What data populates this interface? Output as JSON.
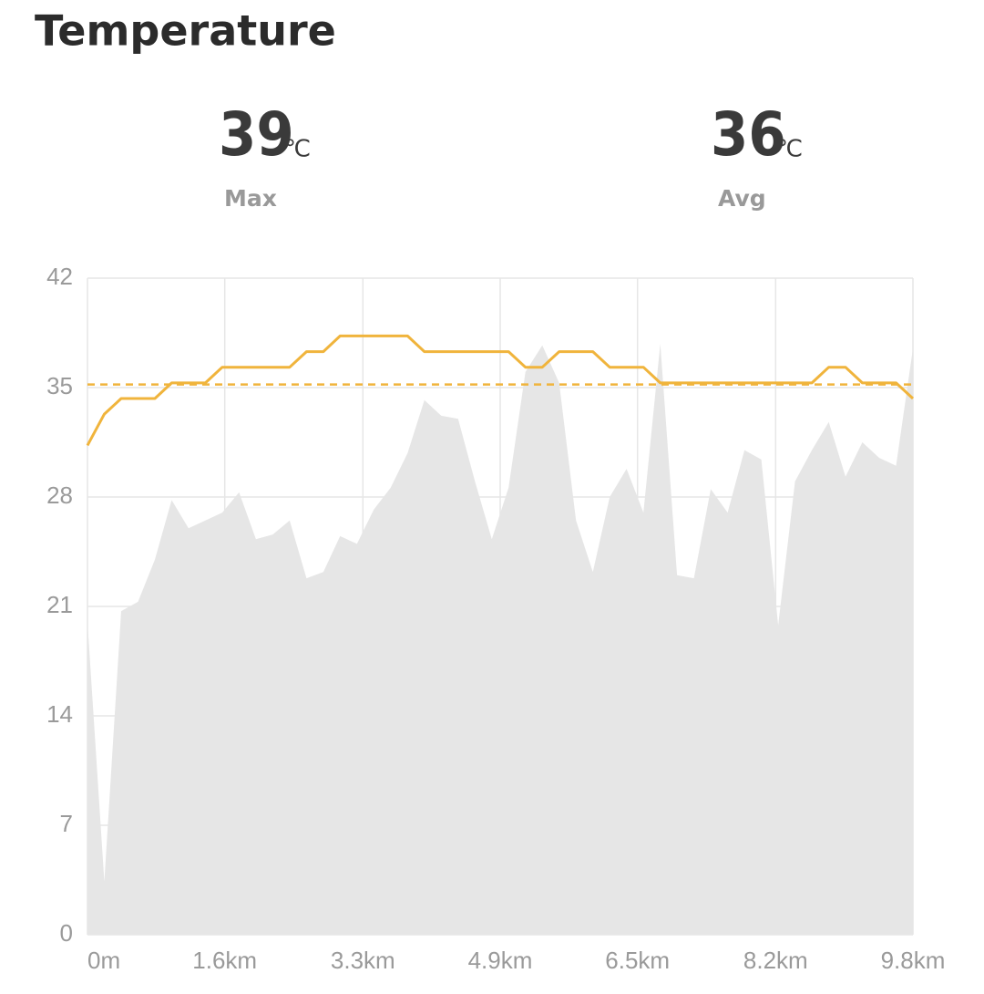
{
  "title": "Temperature",
  "stats": [
    {
      "value": 39,
      "unit": "℃",
      "label": "Max"
    },
    {
      "value": 36,
      "unit": "℃",
      "label": "Avg"
    }
  ],
  "chart_data": {
    "type": "line",
    "x": [
      0,
      0.2,
      0.4,
      0.6,
      0.8,
      1.0,
      1.2,
      1.4,
      1.6,
      1.8,
      2.0,
      2.2,
      2.4,
      2.6,
      2.8,
      3.0,
      3.2,
      3.4,
      3.6,
      3.8,
      4.0,
      4.2,
      4.4,
      4.6,
      4.8,
      5.0,
      5.2,
      5.4,
      5.6,
      5.8,
      6.0,
      6.2,
      6.4,
      6.6,
      6.8,
      7.0,
      7.2,
      7.4,
      7.6,
      7.8,
      8.0,
      8.2,
      8.4,
      8.6,
      8.8,
      9.0,
      9.2,
      9.4,
      9.6,
      9.8
    ],
    "series": [
      {
        "type": "area",
        "color": "#e6e6e6",
        "values": [
          20,
          3.4,
          20.7,
          21.3,
          24,
          27.8,
          26,
          26.5,
          27,
          28.3,
          25.3,
          25.6,
          26.5,
          22.8,
          23.2,
          25.5,
          25,
          27.2,
          28.6,
          30.8,
          34.2,
          33.2,
          33,
          29,
          25.3,
          28.6,
          36,
          37.7,
          35.3,
          26.5,
          23.2,
          28,
          29.8,
          27,
          37.8,
          23,
          22.8,
          28.5,
          27,
          31,
          30.4,
          19.8,
          29,
          31,
          32.8,
          29.3,
          31.5,
          30.5,
          30,
          37.5
        ]
      },
      {
        "type": "line",
        "color": "#f0b43c",
        "values": [
          31.3,
          33.3,
          34.3,
          34.3,
          34.3,
          35.3,
          35.3,
          35.3,
          36.3,
          36.3,
          36.3,
          36.3,
          36.3,
          37.3,
          37.3,
          38.3,
          38.3,
          38.3,
          38.3,
          38.3,
          37.3,
          37.3,
          37.3,
          37.3,
          37.3,
          37.3,
          36.3,
          36.3,
          37.3,
          37.3,
          37.3,
          36.3,
          36.3,
          36.3,
          35.3,
          35.3,
          35.3,
          35.3,
          35.3,
          35.3,
          35.3,
          35.3,
          35.3,
          35.3,
          36.3,
          36.3,
          35.3,
          35.3,
          35.3,
          34.3
        ]
      }
    ],
    "reference_line": {
      "value": 35.2,
      "color": "#f0b43c",
      "dashed": true
    },
    "xlim": [
      0,
      9.8
    ],
    "xticks": [
      {
        "value": 0,
        "label": "0m"
      },
      {
        "value": 1.63,
        "label": "1.6km"
      },
      {
        "value": 3.27,
        "label": "3.3km"
      },
      {
        "value": 4.9,
        "label": "4.9km"
      },
      {
        "value": 6.53,
        "label": "6.5km"
      },
      {
        "value": 8.17,
        "label": "8.2km"
      },
      {
        "value": 9.8,
        "label": "9.8km"
      }
    ],
    "ylim": [
      0,
      42
    ],
    "yticks": [
      0,
      7,
      14,
      21,
      28,
      35,
      42
    ],
    "grid": true
  }
}
